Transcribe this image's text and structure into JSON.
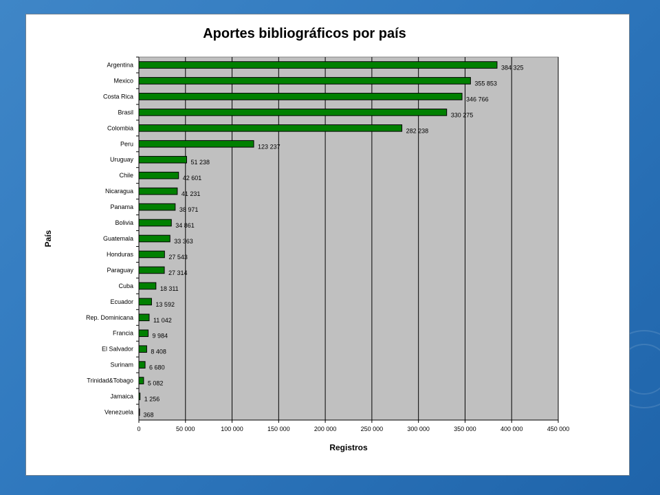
{
  "chart_data": {
    "type": "bar",
    "orientation": "horizontal",
    "title": "Aportes bibliográficos por país",
    "xlabel": "Registros",
    "ylabel": "País",
    "xlim": [
      0,
      450000
    ],
    "x_ticks": [
      0,
      50000,
      100000,
      150000,
      200000,
      250000,
      300000,
      350000,
      400000,
      450000
    ],
    "x_tick_labels": [
      "0",
      "50 000",
      "100 000",
      "150 000",
      "200 000",
      "250 000",
      "300 000",
      "350 000",
      "400 000",
      "450 000"
    ],
    "grid": "vertical",
    "legend": "none",
    "plot_background": "#c0c0c0",
    "bar_color": "#008000",
    "categories": [
      "Argentina",
      "Mexico",
      "Costa Rica",
      "Brasil",
      "Colombia",
      "Peru",
      "Uruguay",
      "Chile",
      "Nicaragua",
      "Panama",
      "Bolivia",
      "Guatemala",
      "Honduras",
      "Paraguay",
      "Cuba",
      "Ecuador",
      "Rep. Dominicana",
      "Francia",
      "El Salvador",
      "Surinam",
      "Trinidad&Tobago",
      "Jamaica",
      "Venezuela"
    ],
    "values": [
      384325,
      355853,
      346766,
      330275,
      282238,
      123237,
      51238,
      42601,
      41231,
      38971,
      34861,
      33363,
      27543,
      27314,
      18311,
      13592,
      11042,
      9984,
      8408,
      6680,
      5082,
      1256,
      368
    ],
    "value_labels": [
      "384 325",
      "355 853",
      "346 766",
      "330 275",
      "282 238",
      "123 237",
      "51 238",
      "42 601",
      "41 231",
      "38 971",
      "34 861",
      "33 363",
      "27 543",
      "27 314",
      "18 311",
      "13 592",
      "11 042",
      "9 984",
      "8 408",
      "6 680",
      "5 082",
      "1 256",
      "368"
    ]
  }
}
